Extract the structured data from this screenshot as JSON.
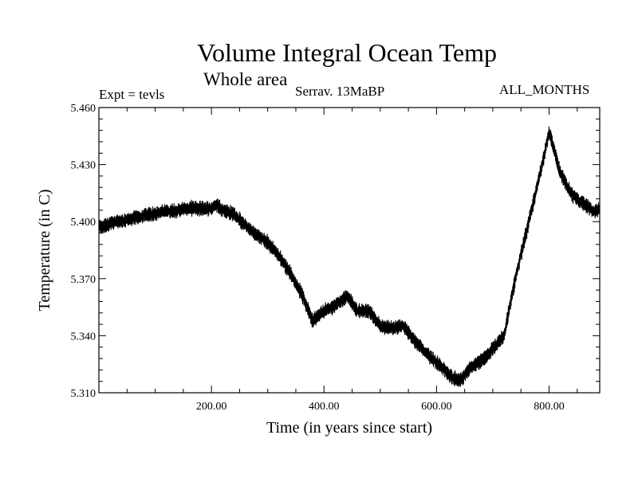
{
  "chart_data": {
    "type": "line",
    "title": "Volume Integral Ocean Temp",
    "subtitle": "Whole area",
    "expt_label": "Expt = tevls",
    "run_label": "Serrav.   13MaBP",
    "months_label": "ALL_MONTHS",
    "xlabel": "Time (in years since start)",
    "ylabel": "Temperature (in C)",
    "xlim": [
      0,
      890
    ],
    "ylim": [
      5.31,
      5.46
    ],
    "x_ticks": [
      200,
      400,
      600,
      800
    ],
    "x_tick_labels": [
      "200.00",
      "400.00",
      "600.00",
      "800.00"
    ],
    "y_ticks": [
      5.31,
      5.34,
      5.37,
      5.4,
      5.43,
      5.46
    ],
    "y_tick_labels": [
      "5.310",
      "5.340",
      "5.370",
      "5.400",
      "5.430",
      "5.460"
    ],
    "series": [
      {
        "name": "Volume Integral Ocean Temp",
        "x": [
          0,
          20,
          50,
          80,
          110,
          140,
          160,
          180,
          200,
          210,
          220,
          240,
          260,
          280,
          300,
          320,
          340,
          360,
          380,
          400,
          420,
          440,
          460,
          480,
          500,
          520,
          540,
          560,
          580,
          600,
          620,
          640,
          660,
          680,
          700,
          720,
          740,
          760,
          780,
          800,
          820,
          840,
          860,
          880,
          890
        ],
        "y": [
          5.397,
          5.399,
          5.401,
          5.403,
          5.405,
          5.406,
          5.407,
          5.407,
          5.407,
          5.409,
          5.406,
          5.404,
          5.398,
          5.393,
          5.389,
          5.382,
          5.373,
          5.362,
          5.348,
          5.353,
          5.356,
          5.361,
          5.353,
          5.353,
          5.345,
          5.344,
          5.345,
          5.338,
          5.331,
          5.326,
          5.32,
          5.316,
          5.323,
          5.327,
          5.333,
          5.34,
          5.37,
          5.395,
          5.42,
          5.447,
          5.426,
          5.414,
          5.41,
          5.405,
          5.407
        ],
        "band_halfwidth": 0.0035
      }
    ]
  }
}
